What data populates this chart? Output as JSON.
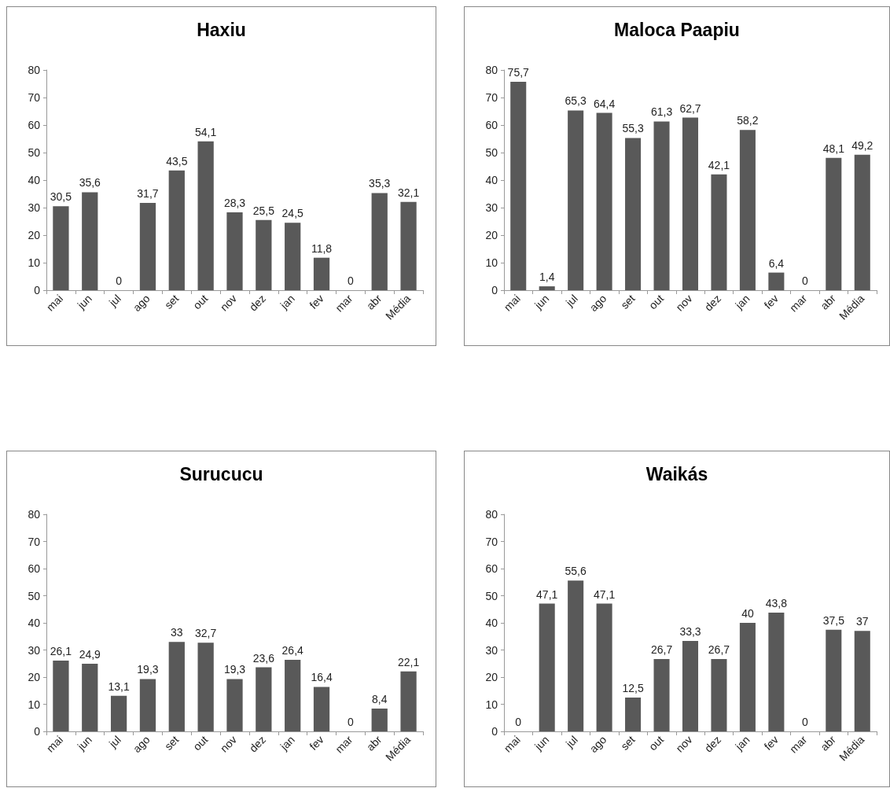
{
  "chart_data": [
    {
      "type": "bar",
      "title": "Haxiu",
      "categories": [
        "mai",
        "jun",
        "jul",
        "ago",
        "set",
        "out",
        "nov",
        "dez",
        "jan",
        "fev",
        "mar",
        "abr",
        "Média"
      ],
      "values": [
        30.5,
        35.6,
        0,
        31.7,
        43.5,
        54.1,
        28.3,
        25.5,
        24.5,
        11.8,
        0,
        35.3,
        32.1
      ],
      "value_labels": [
        "30,5",
        "35,6",
        "0",
        "31,7",
        "43,5",
        "54,1",
        "28,3",
        "25,5",
        "24,5",
        "11,8",
        "0",
        "35,3",
        "32,1"
      ],
      "color": "#595959",
      "ylim": [
        0,
        80
      ],
      "yticks": [
        0,
        10,
        20,
        30,
        40,
        50,
        60,
        70,
        80
      ],
      "grid": false
    },
    {
      "type": "bar",
      "title": "Maloca Paapiu",
      "categories": [
        "mai",
        "jun",
        "jul",
        "ago",
        "set",
        "out",
        "nov",
        "dez",
        "jan",
        "fev",
        "mar",
        "abr",
        "Média"
      ],
      "values": [
        75.7,
        1.4,
        65.3,
        64.4,
        55.3,
        61.3,
        62.7,
        42.1,
        58.2,
        6.4,
        0,
        48.1,
        49.2
      ],
      "value_labels": [
        "75,7",
        "1,4",
        "65,3",
        "64,4",
        "55,3",
        "61,3",
        "62,7",
        "42,1",
        "58,2",
        "6,4",
        "0",
        "48,1",
        "49,2"
      ],
      "color": "#595959",
      "ylim": [
        0,
        80
      ],
      "yticks": [
        0,
        10,
        20,
        30,
        40,
        50,
        60,
        70,
        80
      ],
      "grid": false
    },
    {
      "type": "bar",
      "title": "Surucucu",
      "categories": [
        "mai",
        "jun",
        "jul",
        "ago",
        "set",
        "out",
        "nov",
        "dez",
        "jan",
        "fev",
        "mar",
        "abr",
        "Média"
      ],
      "values": [
        26.1,
        24.9,
        13.1,
        19.3,
        33,
        32.7,
        19.3,
        23.6,
        26.4,
        16.4,
        0,
        8.4,
        22.1
      ],
      "value_labels": [
        "26,1",
        "24,9",
        "13,1",
        "19,3",
        "33",
        "32,7",
        "19,3",
        "23,6",
        "26,4",
        "16,4",
        "0",
        "8,4",
        "22,1"
      ],
      "color": "#595959",
      "ylim": [
        0,
        80
      ],
      "yticks": [
        0,
        10,
        20,
        30,
        40,
        50,
        60,
        70,
        80
      ],
      "grid": false
    },
    {
      "type": "bar",
      "title": "Waikás",
      "categories": [
        "mai",
        "jun",
        "jul",
        "ago",
        "set",
        "out",
        "nov",
        "dez",
        "jan",
        "fev",
        "mar",
        "abr",
        "Média"
      ],
      "values": [
        0,
        47.1,
        55.6,
        47.1,
        12.5,
        26.7,
        33.3,
        26.7,
        40,
        43.8,
        0,
        37.5,
        37
      ],
      "value_labels": [
        "0",
        "47,1",
        "55,6",
        "47,1",
        "12,5",
        "26,7",
        "33,3",
        "26,7",
        "40",
        "43,8",
        "0",
        "37,5",
        "37"
      ],
      "color": "#595959",
      "ylim": [
        0,
        80
      ],
      "yticks": [
        0,
        10,
        20,
        30,
        40,
        50,
        60,
        70,
        80
      ],
      "grid": false
    }
  ]
}
